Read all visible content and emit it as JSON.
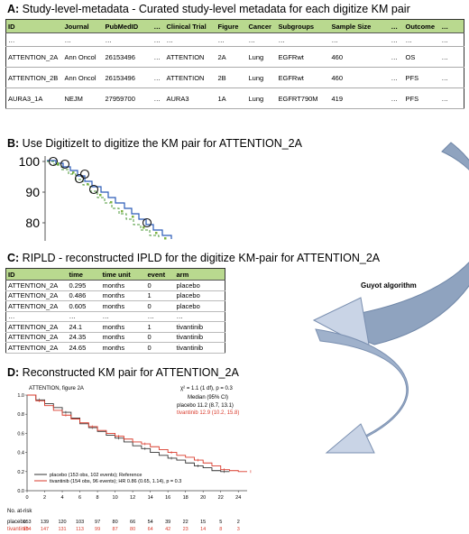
{
  "panel_a": {
    "letter": "A:",
    "title": " Study-level-metadata - Curated study-level metadata for each digitize KM pair",
    "columns": [
      "ID",
      "Journal",
      "PubMedID",
      "…",
      "Clinical Trial",
      "Figure",
      "Cancer",
      "Subgroups",
      "Sample Size",
      "…",
      "Outcome",
      "…"
    ],
    "rows": [
      [
        "…",
        "…",
        "…",
        "…",
        "…",
        "…",
        "…",
        "…",
        "…",
        "…",
        "…",
        "…"
      ],
      [
        "ATTENTION_2A",
        "Ann Oncol",
        "26153496",
        "…",
        "ATTENTION",
        "2A",
        "Lung",
        "EGFRwt",
        "460",
        "…",
        "OS",
        "…"
      ],
      [
        "ATTENTION_2B",
        "Ann Oncol",
        "26153496",
        "…",
        "ATTENTION",
        "2B",
        "Lung",
        "EGFRwt",
        "460",
        "…",
        "PFS",
        "…"
      ],
      [
        "AURA3_1A",
        "NEJM",
        "27959700",
        "…",
        "AURA3",
        "1A",
        "Lung",
        "EGFRT790M",
        "419",
        "…",
        "PFS",
        "…"
      ]
    ]
  },
  "panel_b": {
    "letter": "B:",
    "title": " Use DigitizeIt to digitize the KM pair for ATTENTION_2A",
    "y_ticks": [
      "100",
      "90",
      "80"
    ]
  },
  "panel_c": {
    "letter": "C:",
    "title": " RIPLD - reconstructed IPLD for the digitize KM-pair for ATTENTION_2A",
    "columns": [
      "ID",
      "time",
      "time unit",
      "event",
      "arm"
    ],
    "rows": [
      [
        "ATTENTION_2A",
        "0.295",
        "months",
        "0",
        "placebo"
      ],
      [
        "ATTENTION_2A",
        "0.486",
        "months",
        "1",
        "placebo"
      ],
      [
        "ATTENTION_2A",
        "0.605",
        "months",
        "0",
        "placebo"
      ],
      [
        "…",
        "…",
        "…",
        "…",
        "…"
      ],
      [
        "ATTENTION_2A",
        "24.1",
        "months",
        "1",
        "tivantinib"
      ],
      [
        "ATTENTION_2A",
        "24.35",
        "months",
        "0",
        "tivantinib"
      ],
      [
        "ATTENTION_2A",
        "24.65",
        "months",
        "0",
        "tivantinib"
      ]
    ]
  },
  "panel_d": {
    "letter": "D:",
    "title": " Reconstructed KM pair for ATTENTION_2A",
    "figure_label": "ATTENTION, figure 2A",
    "stat_line": "χ² = 1.1 (1 df), p = 0.3",
    "median_header": "Median (95% CI)",
    "median_placebo": "placebo  11.2 (8.7, 13.1)",
    "median_tivantinib": "tivantinib  12.9 (10.2, 15.8)",
    "legend_placebo": "placebo (153 obs, 102 events); Reference",
    "legend_tivantinib": "tivantinib (154 obs, 96 events); HR 0.86 (0.65, 1.14), p = 0.3",
    "at_risk_header": "No. at-risk",
    "colors": {
      "placebo": "#333333",
      "tivantinib": "#d93a2b"
    }
  },
  "arrow_label": "Guyot algorithm",
  "chart_data": [
    {
      "type": "line",
      "title": "Reconstructed KM pair for ATTENTION_2A",
      "xlabel": "",
      "ylabel": "",
      "xlim": [
        0,
        25
      ],
      "ylim": [
        0,
        1
      ],
      "x_ticks": [
        0,
        2,
        4,
        6,
        8,
        10,
        12,
        14,
        16,
        18,
        20,
        22,
        24
      ],
      "y_ticks": [
        0.0,
        0.2,
        0.4,
        0.6,
        0.8,
        1.0
      ],
      "series": [
        {
          "name": "placebo",
          "x": [
            0,
            1,
            2,
            3,
            4,
            5,
            6,
            7,
            8,
            9,
            10,
            11,
            12,
            13,
            14,
            15,
            16,
            17,
            18,
            19,
            20,
            21,
            22,
            23
          ],
          "y": [
            1.0,
            0.95,
            0.91,
            0.87,
            0.82,
            0.76,
            0.7,
            0.66,
            0.62,
            0.58,
            0.55,
            0.51,
            0.47,
            0.44,
            0.4,
            0.37,
            0.34,
            0.32,
            0.29,
            0.26,
            0.24,
            0.21,
            0.2,
            0.2
          ]
        },
        {
          "name": "tivantinib",
          "x": [
            0,
            1,
            2,
            3,
            4,
            5,
            6,
            7,
            8,
            9,
            10,
            11,
            12,
            13,
            14,
            15,
            16,
            17,
            18,
            19,
            20,
            21,
            22,
            23,
            24,
            25
          ],
          "y": [
            1.0,
            0.94,
            0.89,
            0.84,
            0.79,
            0.75,
            0.71,
            0.67,
            0.63,
            0.6,
            0.57,
            0.54,
            0.51,
            0.49,
            0.46,
            0.43,
            0.4,
            0.37,
            0.35,
            0.32,
            0.29,
            0.26,
            0.22,
            0.21,
            0.2,
            0.2
          ]
        }
      ],
      "at_risk": {
        "placebo": [
          153,
          139,
          120,
          103,
          97,
          80,
          66,
          54,
          39,
          22,
          15,
          5,
          2
        ],
        "tivantinib": [
          154,
          147,
          131,
          113,
          99,
          87,
          80,
          64,
          42,
          23,
          14,
          8,
          3
        ]
      }
    }
  ]
}
